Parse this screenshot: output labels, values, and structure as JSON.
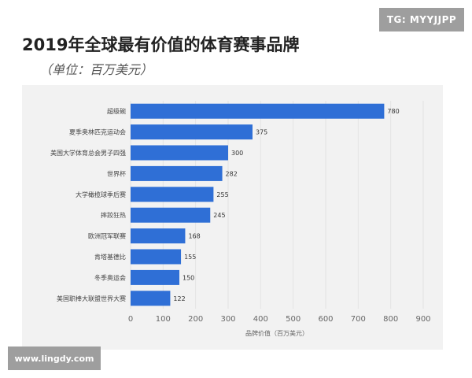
{
  "header": {
    "title": "2019年全球最有价值的体育赛事品牌",
    "subtitle": "（单位：百万美元）"
  },
  "watermarks": {
    "top": "TG: MYYJJPP",
    "bottom": "www.lingdy.com"
  },
  "colors": {
    "bar": "#2f6fd6",
    "grid": "#e3e3e3",
    "panel": "#f2f2f2"
  },
  "chart_data": {
    "type": "bar",
    "orientation": "horizontal",
    "title": "2019年全球最有价值的体育赛事品牌",
    "subtitle": "（单位：百万美元）",
    "xlabel": "品牌价值（百万美元）",
    "ylabel": "",
    "categories": [
      "超级碗",
      "夏季奥林匹克运动会",
      "美国大学体育总会男子四强",
      "世界杯",
      "大学橄榄球季后赛",
      "摔跤狂热",
      "欧洲冠军联赛",
      "肯塔基德比",
      "冬季奥运会",
      "美国职棒大联盟世界大赛"
    ],
    "values": [
      780,
      375,
      300,
      282,
      255,
      245,
      168,
      155,
      150,
      122
    ],
    "xlim": [
      0,
      900
    ],
    "xticks": [
      0,
      100,
      200,
      300,
      400,
      500,
      600,
      700,
      800,
      900
    ],
    "grid": true,
    "data_labels": true
  }
}
